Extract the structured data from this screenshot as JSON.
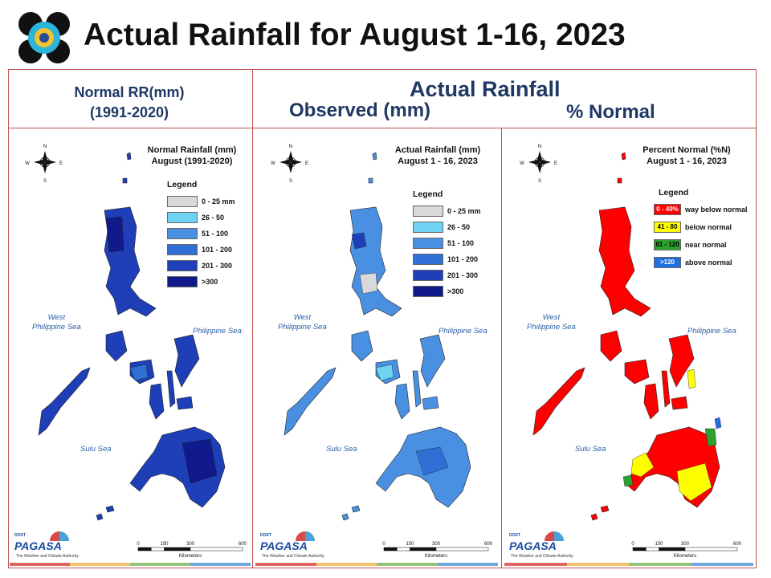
{
  "title": "Actual Rainfall for August 1-16, 2023",
  "headers": {
    "normal_line1": "Normal RR(mm)",
    "normal_line2": "(1991-2020)",
    "actual": "Actual Rainfall",
    "observed": "Observed (mm)",
    "percent": "% Normal"
  },
  "panels": [
    {
      "title_line1": "Normal Rainfall (mm)",
      "title_line2": "August (1991-2020)",
      "legend_title": "Legend",
      "legend": [
        {
          "label": "0 - 25 mm",
          "color": "#d9d9d9"
        },
        {
          "label": "26 - 50",
          "color": "#6ed3f2"
        },
        {
          "label": "51 - 100",
          "color": "#4a90e2"
        },
        {
          "label": "101 - 200",
          "color": "#2f6fd6"
        },
        {
          "label": "201 - 300",
          "color": "#1f3fb8"
        },
        {
          "label": ">300",
          "color": "#101a8a"
        }
      ],
      "map_fill": "#1f3fb8"
    },
    {
      "title_line1": "Actual Rainfall (mm)",
      "title_line2": "August 1 - 16, 2023",
      "legend_title": "Legend",
      "legend": [
        {
          "label": "0 - 25 mm",
          "color": "#d9d9d9"
        },
        {
          "label": "26 - 50",
          "color": "#6ed3f2"
        },
        {
          "label": "51 - 100",
          "color": "#4a90e2"
        },
        {
          "label": "101 - 200",
          "color": "#2f6fd6"
        },
        {
          "label": "201 - 300",
          "color": "#1f3fb8"
        },
        {
          "label": ">300",
          "color": "#101a8a"
        }
      ],
      "map_fill": "#4a90e2"
    },
    {
      "title_line1": "Percent Normal (%N)",
      "title_line2": "August 1 - 16, 2023",
      "legend_title": "Legend",
      "legend": [
        {
          "swatch": "0 - 40%",
          "label": "way below normal",
          "color": "#ff0000"
        },
        {
          "swatch": "41 - 80",
          "label": "below normal",
          "color": "#ffff00"
        },
        {
          "swatch": "81 - 120",
          "label": "near normal",
          "color": "#2ca02c"
        },
        {
          "swatch": ">120",
          "label": "above normal",
          "color": "#1f6fe0"
        }
      ],
      "map_fill": "#ff0000"
    }
  ],
  "seas": {
    "west": "West\nPhilippine Sea",
    "philippine": "Philippine Sea",
    "sulu": "Sulu Sea"
  },
  "scale": {
    "ticks": [
      "0",
      "150",
      "300",
      "600"
    ],
    "unit": "Kilometers"
  },
  "branding": {
    "name": "PAGASA",
    "agency": "DOST",
    "tagline": "The Weather and Climate Authority"
  },
  "compass": [
    "N",
    "S",
    "E",
    "W"
  ],
  "stripe_colors": [
    "#e06666",
    "#f6c26b",
    "#93c47d",
    "#6fa8dc"
  ]
}
